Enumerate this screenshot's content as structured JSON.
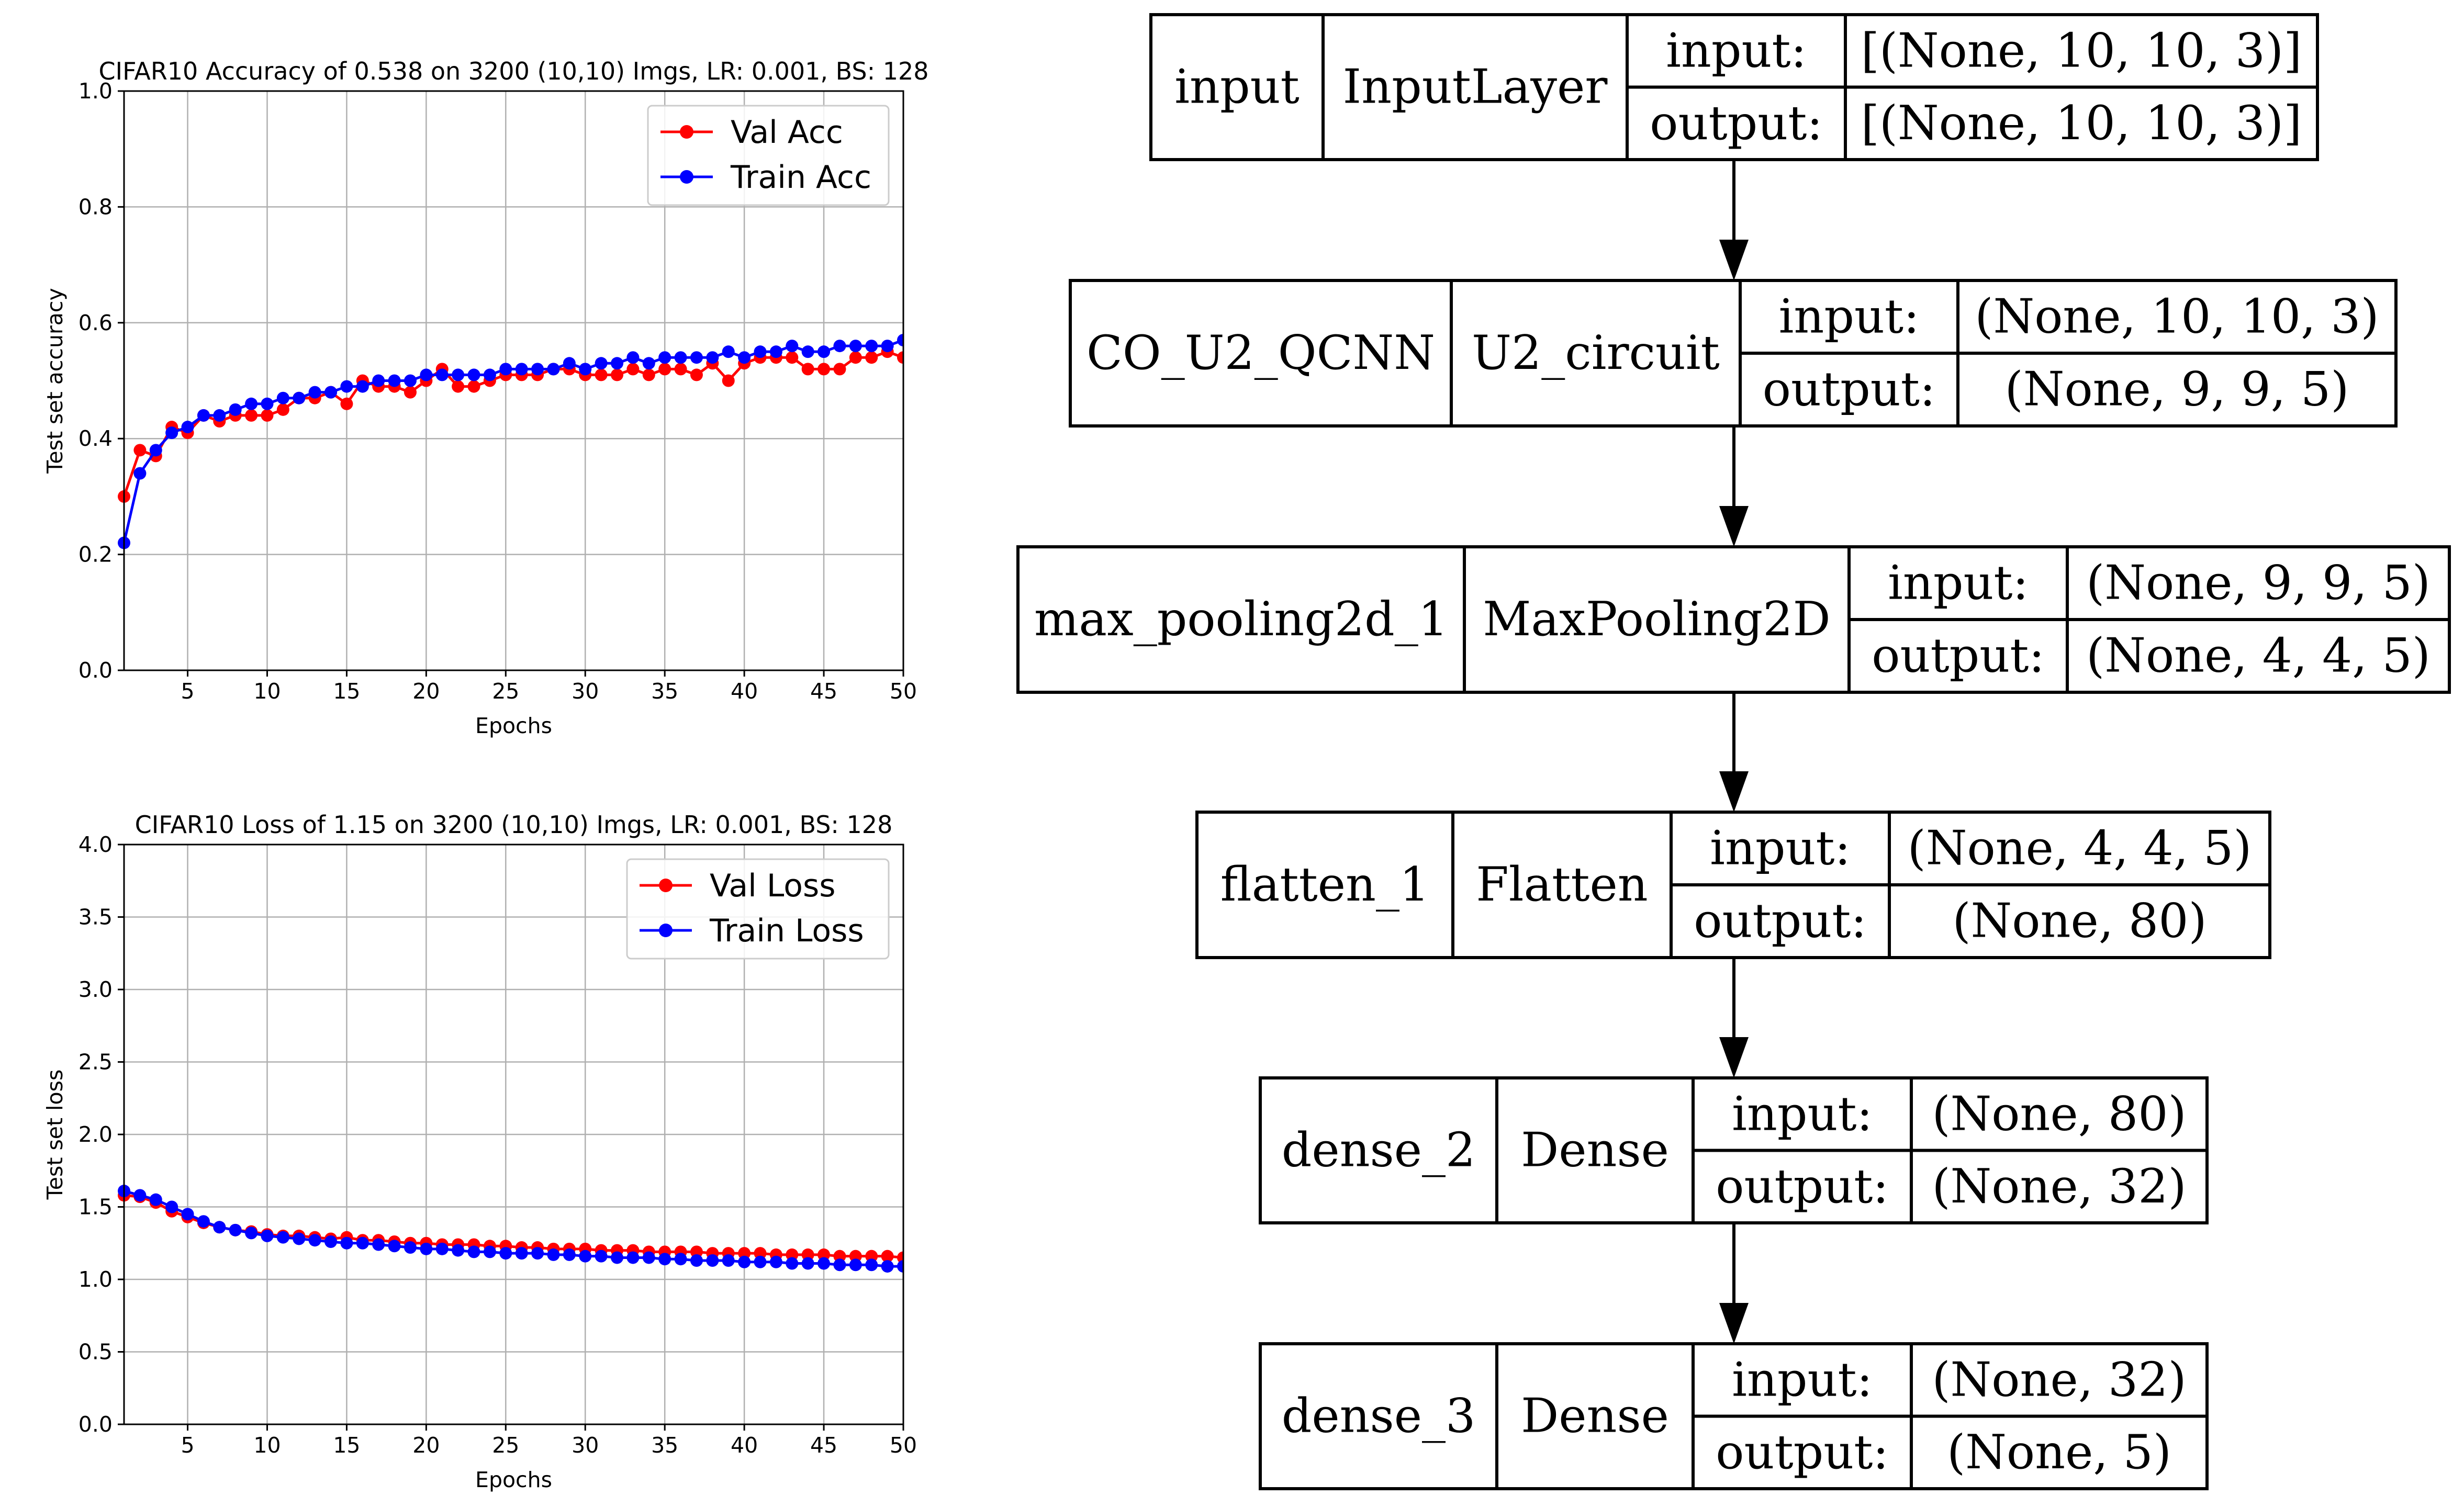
{
  "colors": {
    "val": "#ff0000",
    "train": "#0000ff",
    "grid": "#b0b0b0",
    "box_stroke": "#000000",
    "arrow": "#000000"
  },
  "chart_data": [
    {
      "type": "line",
      "title": "CIFAR10 Accuracy of 0.538 on 3200 (10,10) Imgs, LR: 0.001, BS: 128",
      "xlabel": "Epochs",
      "ylabel": "Test set accuracy",
      "xlim": [
        1,
        50
      ],
      "ylim": [
        0.0,
        1.0
      ],
      "xticks": [
        5,
        10,
        15,
        20,
        25,
        30,
        35,
        40,
        45,
        50
      ],
      "yticks": [
        0.0,
        0.2,
        0.4,
        0.6,
        0.8,
        1.0
      ],
      "ytick_labels": [
        "0.0",
        "0.2",
        "0.4",
        "0.6",
        "0.8",
        "1.0"
      ],
      "grid": true,
      "legend_position": "top-right",
      "x": [
        1,
        2,
        3,
        4,
        5,
        6,
        7,
        8,
        9,
        10,
        11,
        12,
        13,
        14,
        15,
        16,
        17,
        18,
        19,
        20,
        21,
        22,
        23,
        24,
        25,
        26,
        27,
        28,
        29,
        30,
        31,
        32,
        33,
        34,
        35,
        36,
        37,
        38,
        39,
        40,
        41,
        42,
        43,
        44,
        45,
        46,
        47,
        48,
        49,
        50
      ],
      "series": [
        {
          "name": "Val Acc",
          "color": "#ff0000",
          "values": [
            0.3,
            0.38,
            0.37,
            0.42,
            0.41,
            0.44,
            0.43,
            0.44,
            0.44,
            0.44,
            0.45,
            0.47,
            0.47,
            0.48,
            0.46,
            0.5,
            0.49,
            0.49,
            0.48,
            0.5,
            0.52,
            0.49,
            0.49,
            0.5,
            0.51,
            0.51,
            0.51,
            0.52,
            0.52,
            0.51,
            0.51,
            0.51,
            0.52,
            0.51,
            0.52,
            0.52,
            0.51,
            0.53,
            0.5,
            0.53,
            0.54,
            0.54,
            0.54,
            0.52,
            0.52,
            0.52,
            0.54,
            0.54,
            0.55,
            0.54
          ]
        },
        {
          "name": "Train Acc",
          "color": "#0000ff",
          "values": [
            0.22,
            0.34,
            0.38,
            0.41,
            0.42,
            0.44,
            0.44,
            0.45,
            0.46,
            0.46,
            0.47,
            0.47,
            0.48,
            0.48,
            0.49,
            0.49,
            0.5,
            0.5,
            0.5,
            0.51,
            0.51,
            0.51,
            0.51,
            0.51,
            0.52,
            0.52,
            0.52,
            0.52,
            0.53,
            0.52,
            0.53,
            0.53,
            0.54,
            0.53,
            0.54,
            0.54,
            0.54,
            0.54,
            0.55,
            0.54,
            0.55,
            0.55,
            0.56,
            0.55,
            0.55,
            0.56,
            0.56,
            0.56,
            0.56,
            0.57
          ]
        }
      ]
    },
    {
      "type": "line",
      "title": "CIFAR10 Loss of 1.15 on 3200 (10,10) Imgs, LR: 0.001, BS: 128",
      "xlabel": "Epochs",
      "ylabel": "Test set loss",
      "xlim": [
        1,
        50
      ],
      "ylim": [
        0.0,
        4.0
      ],
      "xticks": [
        5,
        10,
        15,
        20,
        25,
        30,
        35,
        40,
        45,
        50
      ],
      "yticks": [
        0.0,
        0.5,
        1.0,
        1.5,
        2.0,
        2.5,
        3.0,
        3.5,
        4.0
      ],
      "ytick_labels": [
        "0.0",
        "0.5",
        "1.0",
        "1.5",
        "2.0",
        "2.5",
        "3.0",
        "3.5",
        "4.0"
      ],
      "grid": true,
      "legend_position": "top-right",
      "x": [
        1,
        2,
        3,
        4,
        5,
        6,
        7,
        8,
        9,
        10,
        11,
        12,
        13,
        14,
        15,
        16,
        17,
        18,
        19,
        20,
        21,
        22,
        23,
        24,
        25,
        26,
        27,
        28,
        29,
        30,
        31,
        32,
        33,
        34,
        35,
        36,
        37,
        38,
        39,
        40,
        41,
        42,
        43,
        44,
        45,
        46,
        47,
        48,
        49,
        50
      ],
      "series": [
        {
          "name": "Val Loss",
          "color": "#ff0000",
          "values": [
            1.58,
            1.57,
            1.53,
            1.47,
            1.43,
            1.39,
            1.36,
            1.34,
            1.33,
            1.31,
            1.3,
            1.3,
            1.29,
            1.28,
            1.29,
            1.27,
            1.27,
            1.26,
            1.25,
            1.25,
            1.24,
            1.24,
            1.24,
            1.23,
            1.23,
            1.22,
            1.22,
            1.21,
            1.21,
            1.21,
            1.2,
            1.2,
            1.2,
            1.19,
            1.19,
            1.19,
            1.19,
            1.18,
            1.18,
            1.18,
            1.18,
            1.17,
            1.17,
            1.17,
            1.17,
            1.16,
            1.16,
            1.16,
            1.16,
            1.15
          ]
        },
        {
          "name": "Train Loss",
          "color": "#0000ff",
          "values": [
            1.61,
            1.58,
            1.55,
            1.5,
            1.45,
            1.4,
            1.36,
            1.34,
            1.32,
            1.3,
            1.29,
            1.28,
            1.27,
            1.26,
            1.25,
            1.25,
            1.24,
            1.23,
            1.22,
            1.21,
            1.21,
            1.2,
            1.19,
            1.19,
            1.18,
            1.18,
            1.18,
            1.17,
            1.17,
            1.16,
            1.16,
            1.15,
            1.15,
            1.15,
            1.14,
            1.14,
            1.13,
            1.13,
            1.13,
            1.12,
            1.12,
            1.12,
            1.11,
            1.11,
            1.11,
            1.1,
            1.1,
            1.1,
            1.09,
            1.09
          ]
        }
      ]
    }
  ],
  "model_diagram": {
    "labels": {
      "input": "input:",
      "output": "output:"
    },
    "layers": [
      {
        "name": "input",
        "type": "InputLayer",
        "input_shape": "[(None, 10, 10, 3)]",
        "output_shape": "[(None, 10, 10, 3)]"
      },
      {
        "name": "CO_U2_QCNN",
        "type": "U2_circuit",
        "input_shape": "(None, 10, 10, 3)",
        "output_shape": "(None, 9, 9, 5)"
      },
      {
        "name": "max_pooling2d_1",
        "type": "MaxPooling2D",
        "input_shape": "(None, 9, 9, 5)",
        "output_shape": "(None, 4, 4, 5)"
      },
      {
        "name": "flatten_1",
        "type": "Flatten",
        "input_shape": "(None, 4, 4, 5)",
        "output_shape": "(None, 80)"
      },
      {
        "name": "dense_2",
        "type": "Dense",
        "input_shape": "(None, 80)",
        "output_shape": "(None, 32)"
      },
      {
        "name": "dense_3",
        "type": "Dense",
        "input_shape": "(None, 32)",
        "output_shape": "(None, 5)"
      }
    ]
  }
}
